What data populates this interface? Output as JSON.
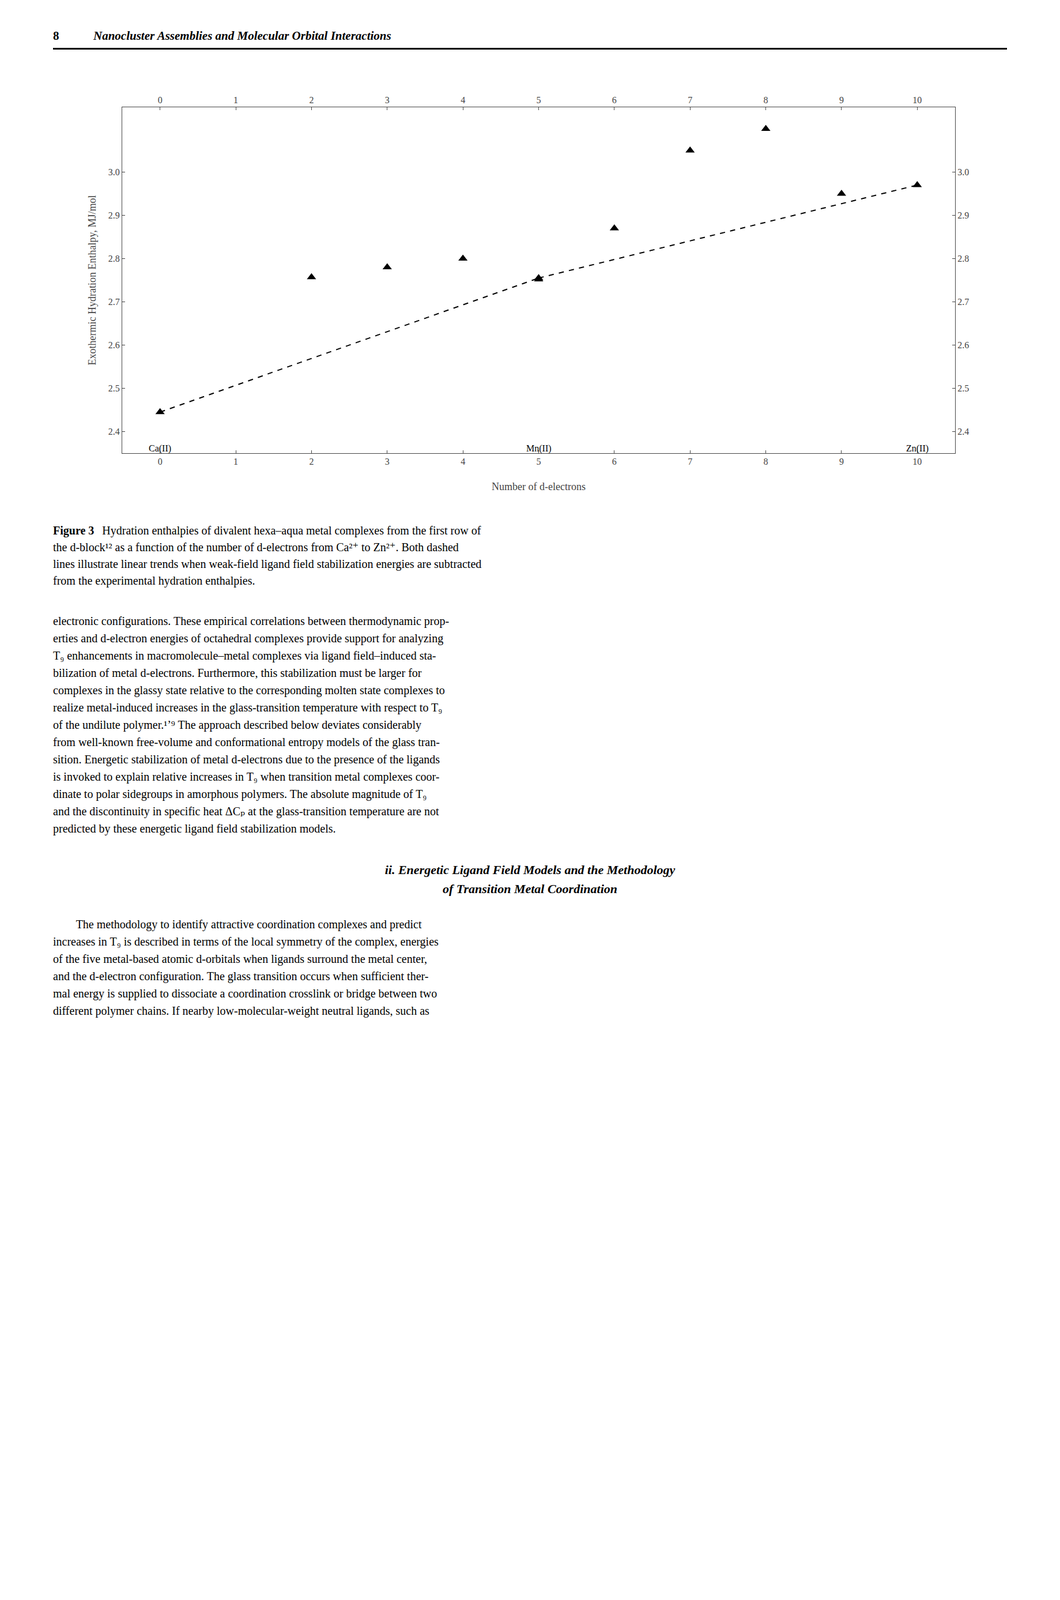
{
  "header_number": "8",
  "header_title": "Nanocluster Assemblies and Molecular Orbital Interactions",
  "chart_data": {
    "type": "scatter",
    "x_label": "Number of d-electrons",
    "y_label": "Exothermic Hydration Enthalpy, MJ/mol",
    "grid": false,
    "series": [
      {
        "type": "scatter",
        "marker": "triangle-up",
        "color": "black",
        "x": [
          0,
          2,
          3,
          4,
          5,
          5,
          6,
          7,
          8,
          9,
          10
        ],
        "values": [
          2.445,
          2.757,
          2.78,
          2.8,
          2.752,
          2.755,
          2.87,
          3.05,
          3.1,
          2.95,
          2.97
        ]
      },
      {
        "type": "line",
        "line_style": "dashed",
        "color": "black",
        "x": [
          0,
          5
        ],
        "values": [
          2.445,
          2.755
        ]
      },
      {
        "type": "line",
        "line_style": "dashed",
        "color": "black",
        "x": [
          5,
          10
        ],
        "values": [
          2.755,
          2.97
        ]
      }
    ],
    "annotations": [
      {
        "text": "Ca(II)",
        "x": 0,
        "y": 2.375
      },
      {
        "text": "Mn(II)",
        "x": 5,
        "y": 2.375
      },
      {
        "text": "Zn(II)",
        "x": 10,
        "y": 2.375
      }
    ],
    "xlim": [
      -0.5,
      10.5
    ],
    "ylim": [
      2.35,
      3.15
    ],
    "xticks": [
      0,
      1,
      2,
      3,
      4,
      5,
      6,
      7,
      8,
      9,
      10
    ],
    "yticks": [
      2.4,
      2.5,
      2.6,
      2.7,
      2.8,
      2.9,
      {
        "value": 3.0,
        "label": "3.0"
      }
    ]
  },
  "caption_label": "Figure 3",
  "caption": "Hydration enthalpies of divalent hexa–aqua metal complexes from the first row of\nthe d-block¹² as a function of the number of d-electrons from Ca²⁺ to Zn²⁺. Both dashed\nlines illustrate linear trends when weak-field ligand field stabilization energies are subtracted\nfrom the experimental hydration enthalpies.",
  "body_text": "electronic configurations. These empirical correlations between thermodynamic prop-\nerties and d-electron energies of octahedral complexes provide support for analyzing\nT₉ enhancements in macromolecule–metal complexes via ligand field–induced sta-\nbilization of metal d-electrons. Furthermore, this stabilization must be larger for\ncomplexes in the glassy state relative to the corresponding molten state complexes to\nrealize metal-induced increases in the glass-transition temperature with respect to T₉\nof the undilute polymer.¹’⁹ The approach described below deviates considerably\nfrom well-known free-volume and conformational entropy models of the glass tran-\nsition. Energetic stabilization of metal d-electrons due to the presence of the ligands\nis invoked to explain relative increases in T₉ when transition metal complexes coor-\ndinate to polar sidegroups in amorphous polymers. The absolute magnitude of T₉\nand the discontinuity in specific heat ΔCₚ at the glass-transition temperature are not\npredicted by these energetic ligand field stabilization models.",
  "section_title": [
    "ii. Energetic Ligand Field Models and the Methodology",
    "of Transition Metal Coordination"
  ],
  "section_body": "        The methodology to identify attractive coordination complexes and predict\nincreases in T₉ is described in terms of the local symmetry of the complex, energies\nof the five metal-based atomic d-orbitals when ligands surround the metal center,\nand the d-electron configuration. The glass transition occurs when sufficient ther-\nmal energy is supplied to dissociate a coordination crosslink or bridge between two\ndifferent polymer chains. If nearby low-molecular-weight neutral ligands, such as"
}
